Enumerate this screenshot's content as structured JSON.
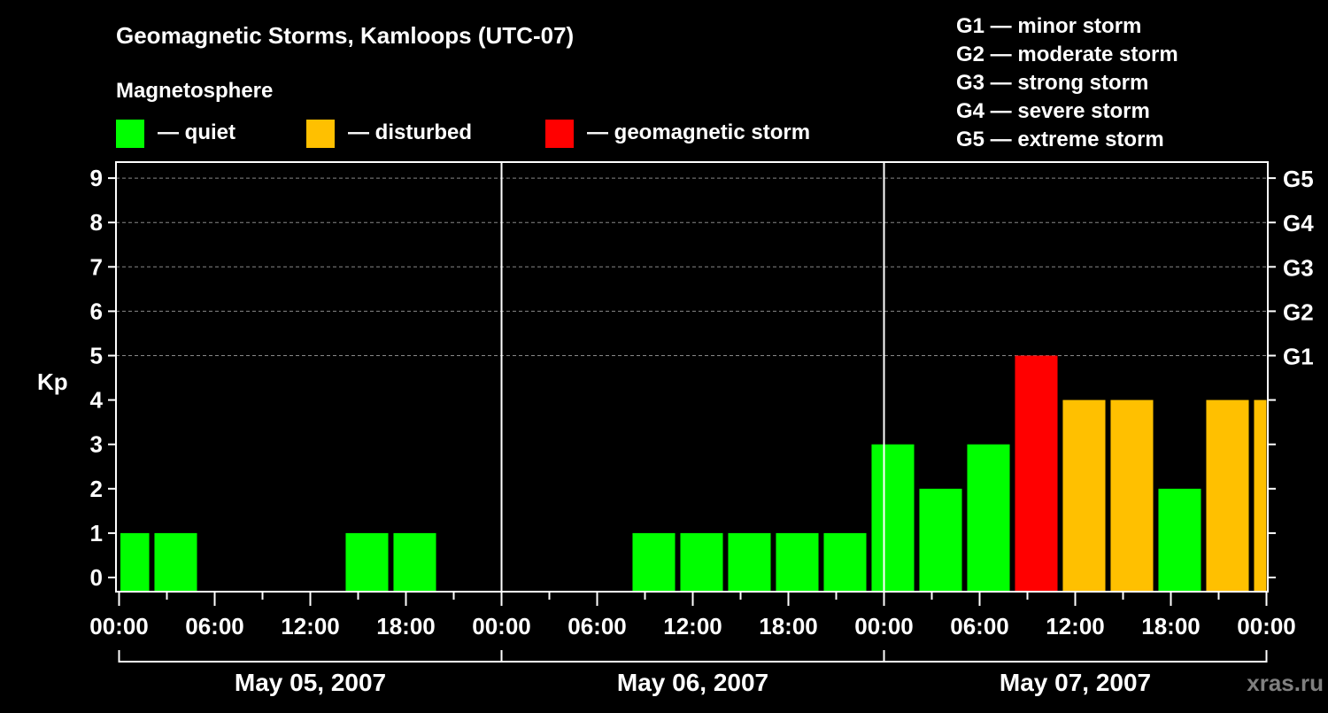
{
  "chart_data": {
    "type": "bar",
    "title": "Geomagnetic Storms, Kamloops (UTC-07)",
    "legend_title": "Magnetosphere",
    "legend": [
      {
        "label": "— quiet",
        "color": "#00ff00"
      },
      {
        "label": "— disturbed",
        "color": "#ffc000"
      },
      {
        "label": "— geomagnetic storm",
        "color": "#ff0000"
      }
    ],
    "storm_scale": [
      "G1 — minor storm",
      "G2 — moderate storm",
      "G3 — strong storm",
      "G4 — severe storm",
      "G5 — extreme storm"
    ],
    "ylabel": "Kp",
    "ylim": [
      -0.3,
      9.35
    ],
    "yticks": [
      "0",
      "1",
      "2",
      "3",
      "4",
      "5",
      "6",
      "7",
      "8",
      "9"
    ],
    "right_ticks": [
      {
        "kp": 5,
        "label": "G1"
      },
      {
        "kp": 6,
        "label": "G2"
      },
      {
        "kp": 7,
        "label": "G3"
      },
      {
        "kp": 8,
        "label": "G4"
      },
      {
        "kp": 9,
        "label": "G5"
      }
    ],
    "xlim_hours": [
      0,
      72
    ],
    "xticks": [
      "00:00",
      "06:00",
      "12:00",
      "18:00",
      "00:00",
      "06:00",
      "12:00",
      "18:00",
      "00:00",
      "06:00",
      "12:00",
      "18:00",
      "00:00"
    ],
    "days": [
      "May 05, 2007",
      "May 06, 2007",
      "May 07, 2007"
    ],
    "bar_duration_hours": 2.67,
    "bars": [
      {
        "start": -0.78,
        "kp": 1,
        "level": "quiet"
      },
      {
        "start": 2.22,
        "kp": 1,
        "level": "quiet"
      },
      {
        "start": 14.22,
        "kp": 1,
        "level": "quiet"
      },
      {
        "start": 17.22,
        "kp": 1,
        "level": "quiet"
      },
      {
        "start": 32.22,
        "kp": 1,
        "level": "quiet"
      },
      {
        "start": 35.22,
        "kp": 1,
        "level": "quiet"
      },
      {
        "start": 38.22,
        "kp": 1,
        "level": "quiet"
      },
      {
        "start": 41.22,
        "kp": 1,
        "level": "quiet"
      },
      {
        "start": 44.22,
        "kp": 1,
        "level": "quiet"
      },
      {
        "start": 47.22,
        "kp": 3,
        "level": "quiet"
      },
      {
        "start": 50.22,
        "kp": 2,
        "level": "quiet"
      },
      {
        "start": 53.22,
        "kp": 3,
        "level": "quiet"
      },
      {
        "start": 56.22,
        "kp": 5,
        "level": "storm"
      },
      {
        "start": 59.22,
        "kp": 4,
        "level": "disturbed"
      },
      {
        "start": 62.22,
        "kp": 4,
        "level": "disturbed"
      },
      {
        "start": 65.22,
        "kp": 2,
        "level": "quiet"
      },
      {
        "start": 68.22,
        "kp": 4,
        "level": "disturbed"
      },
      {
        "start": 71.22,
        "kp": 4,
        "level": "disturbed"
      }
    ],
    "colors": {
      "quiet": "#00ff00",
      "disturbed": "#ffc000",
      "storm": "#ff0000"
    },
    "watermark": "xras.ru"
  }
}
